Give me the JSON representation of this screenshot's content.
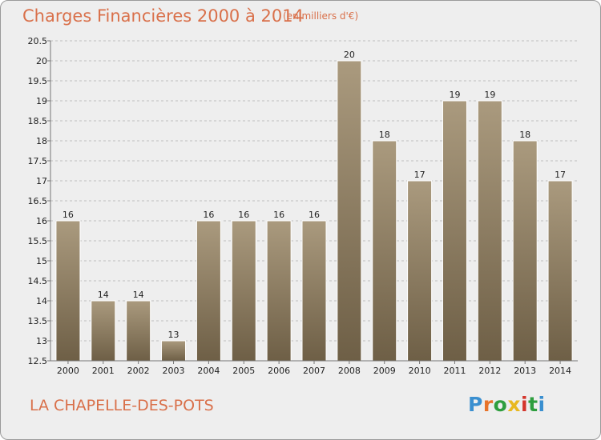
{
  "title": "Charges Financières 2000 à 2014",
  "subtitle": "(en milliers d'€)",
  "city": "LA CHAPELLE-DES-POTS",
  "logo": {
    "text": "Proxiti",
    "colors": [
      "#3a8fd0",
      "#e8732a",
      "#2e9e3e",
      "#e8b820",
      "#d4352c",
      "#2e9e3e",
      "#3a8fd0"
    ]
  },
  "colors": {
    "bar_top": "#aa9a7e",
    "bar_bottom": "#6e5f46",
    "bar_stroke": "#ffffff",
    "grid": "#bfbfbf",
    "axis": "#777777",
    "accent": "#d9704a"
  },
  "chart_data": {
    "type": "bar",
    "categories": [
      "2000",
      "2001",
      "2002",
      "2003",
      "2004",
      "2005",
      "2006",
      "2007",
      "2008",
      "2009",
      "2010",
      "2011",
      "2012",
      "2013",
      "2014"
    ],
    "values": [
      16,
      14,
      14,
      13,
      16,
      16,
      16,
      16,
      20,
      18,
      17,
      19,
      19,
      18,
      17
    ],
    "data_labels": [
      "16",
      "14",
      "14",
      "13",
      "16",
      "16",
      "16",
      "16",
      "20",
      "18",
      "17",
      "19",
      "19",
      "18",
      "17"
    ],
    "ylim": [
      12.5,
      20.5
    ],
    "yticks": [
      12.5,
      13,
      13.5,
      14,
      14.5,
      15,
      15.5,
      16,
      16.5,
      17,
      17.5,
      18,
      18.5,
      19,
      19.5,
      20,
      20.5
    ],
    "ytick_labels": [
      "12.5",
      "13",
      "13.5",
      "14",
      "14.5",
      "15",
      "15.5",
      "16",
      "16.5",
      "17",
      "17.5",
      "18",
      "18.5",
      "19",
      "19.5",
      "20",
      "20.5"
    ],
    "grid": true,
    "xlabel": "",
    "ylabel": ""
  }
}
